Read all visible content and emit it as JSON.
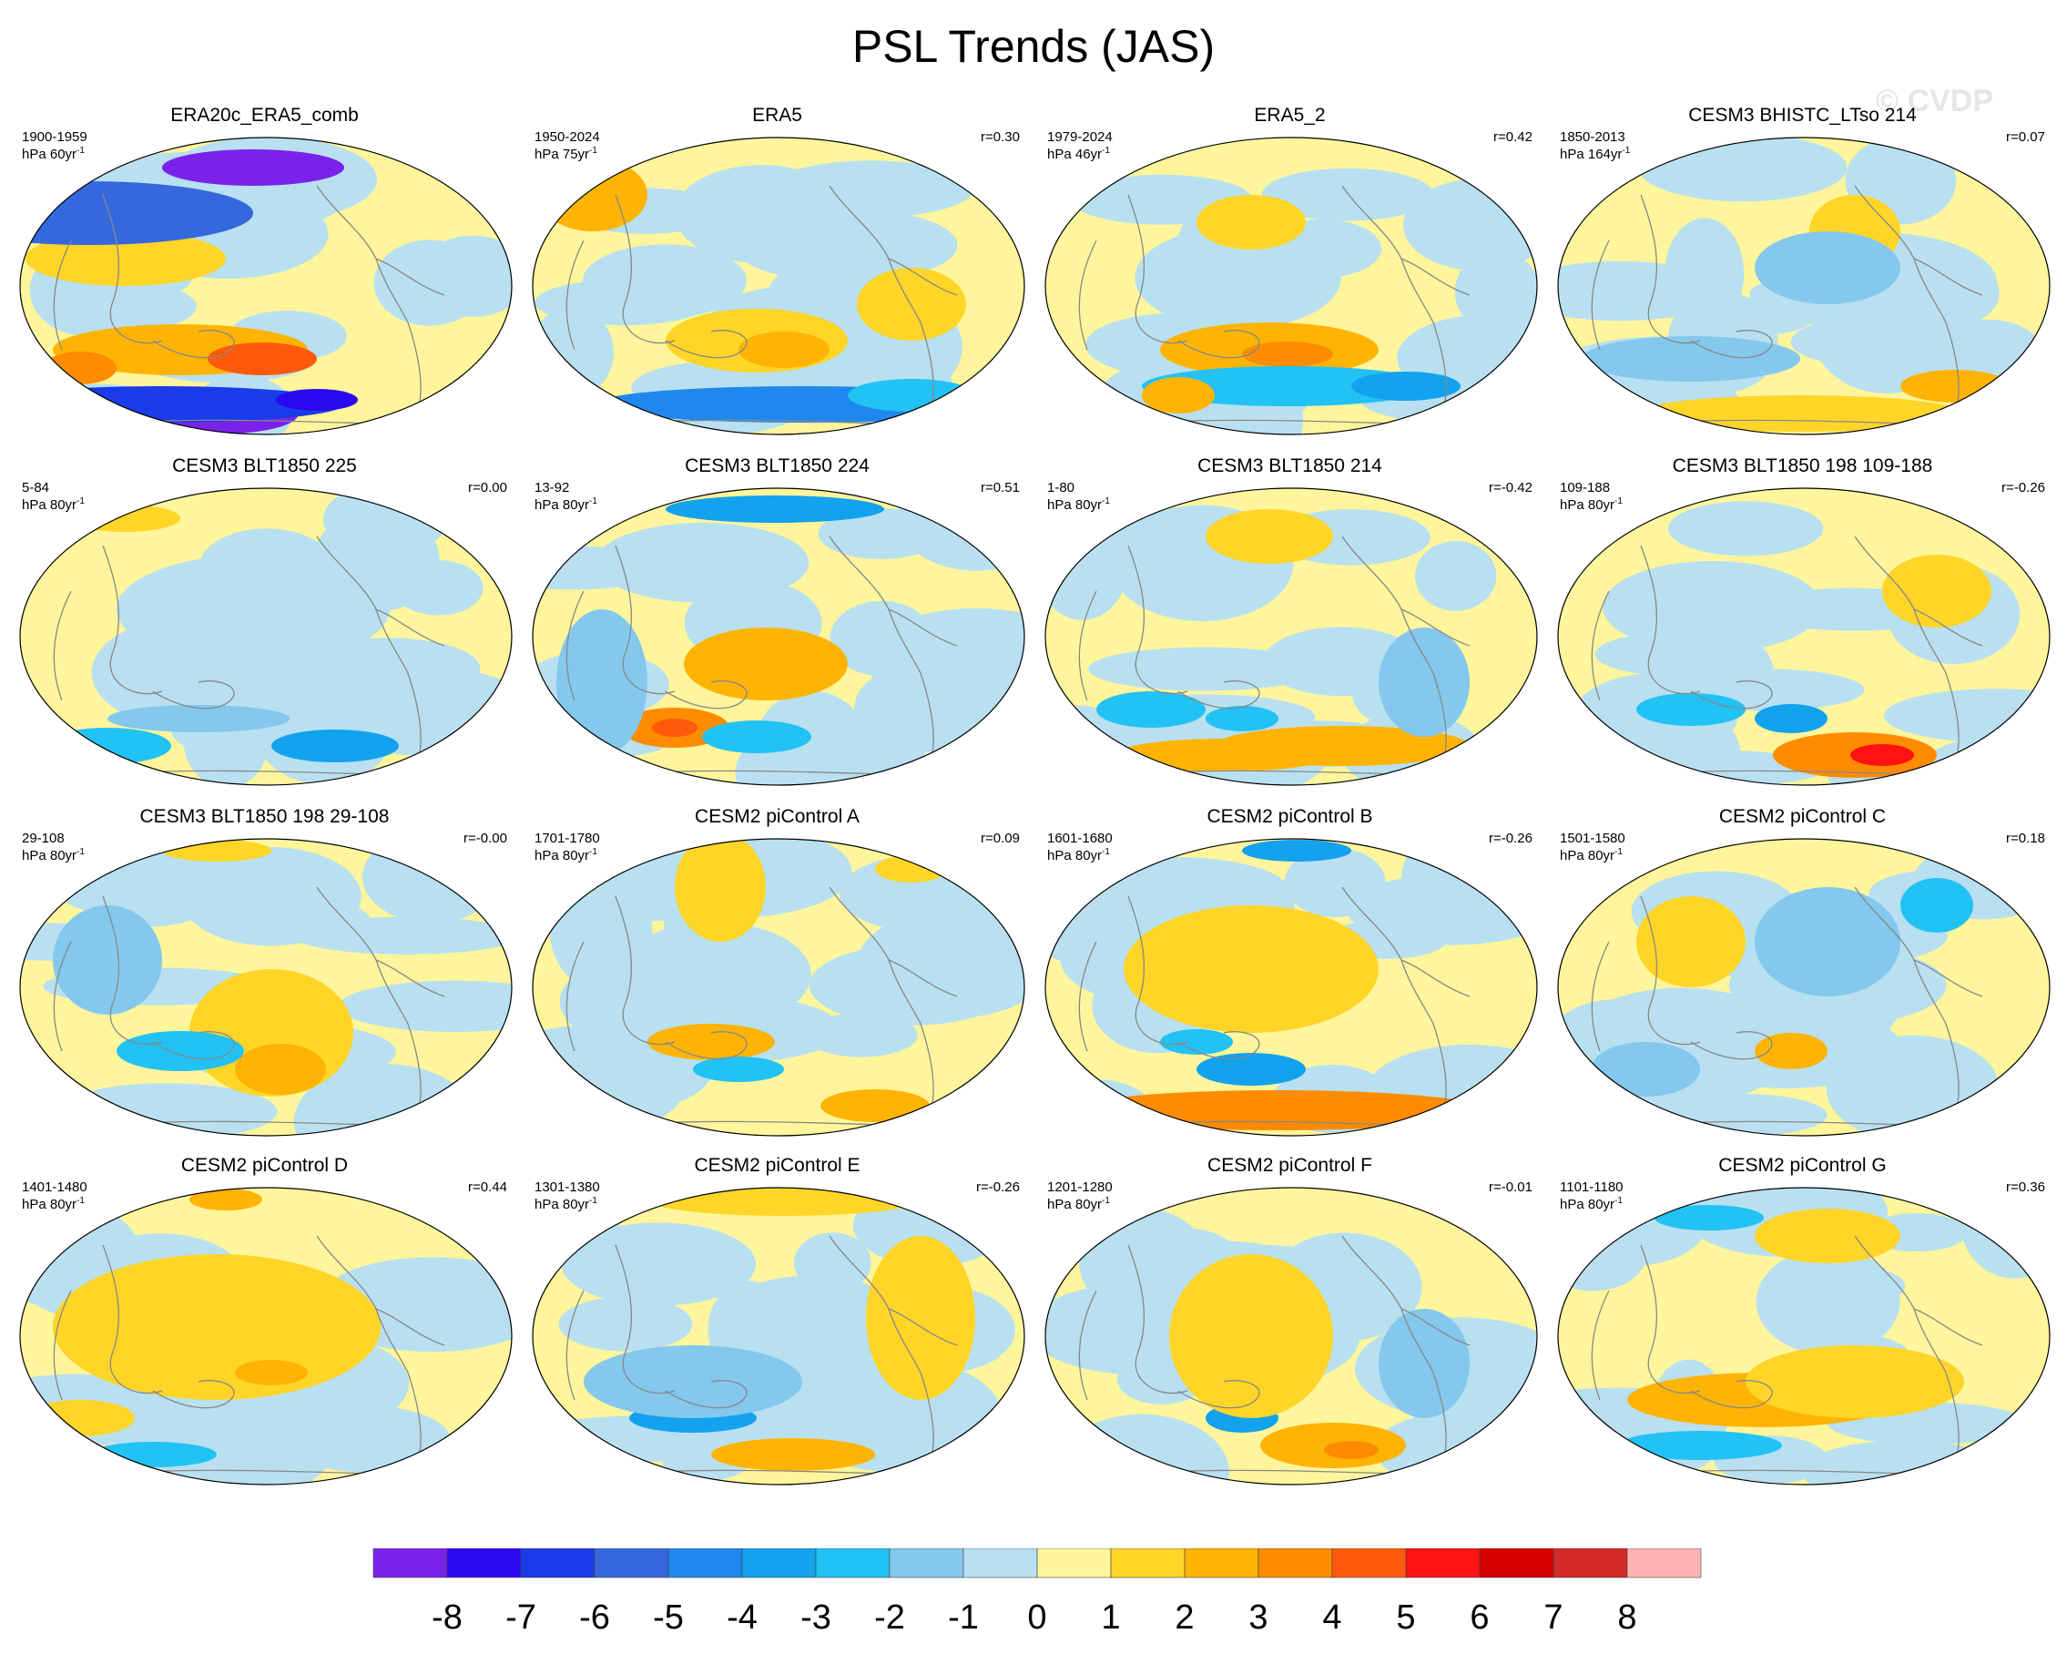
{
  "header": {
    "title": "PSL Trends (JAS)",
    "watermark": "© CVDP"
  },
  "chart_data": {
    "type": "heatmap",
    "title": "PSL Trends (JAS)",
    "projection": "Robinson, Pacific-centered",
    "panels": [
      {
        "name": "ERA20c_ERA5_comb",
        "period": "1900-1959",
        "units": "hPa 60yr",
        "units_exp": "-1",
        "r": ""
      },
      {
        "name": "ERA5",
        "period": "1950-2024",
        "units": "hPa 75yr",
        "units_exp": "-1",
        "r": "r=0.30"
      },
      {
        "name": "ERA5_2",
        "period": "1979-2024",
        "units": "hPa 46yr",
        "units_exp": "-1",
        "r": "r=0.42"
      },
      {
        "name": "CESM3 BHISTC_LTso 214",
        "period": "1850-2013",
        "units": "hPa 164yr",
        "units_exp": "-1",
        "r": "r=0.07"
      },
      {
        "name": "CESM3 BLT1850 225",
        "period": "5-84",
        "units": "hPa 80yr",
        "units_exp": "-1",
        "r": "r=0.00"
      },
      {
        "name": "CESM3 BLT1850 224",
        "period": "13-92",
        "units": "hPa 80yr",
        "units_exp": "-1",
        "r": "r=0.51"
      },
      {
        "name": "CESM3 BLT1850 214",
        "period": "1-80",
        "units": "hPa 80yr",
        "units_exp": "-1",
        "r": "r=-0.42"
      },
      {
        "name": "CESM3 BLT1850 198 109-188",
        "period": "109-188",
        "units": "hPa 80yr",
        "units_exp": "-1",
        "r": "r=-0.26"
      },
      {
        "name": "CESM3 BLT1850 198 29-108",
        "period": "29-108",
        "units": "hPa 80yr",
        "units_exp": "-1",
        "r": "r=-0.00"
      },
      {
        "name": "CESM2 piControl A",
        "period": "1701-1780",
        "units": "hPa 80yr",
        "units_exp": "-1",
        "r": "r=0.09"
      },
      {
        "name": "CESM2 piControl B",
        "period": "1601-1680",
        "units": "hPa 80yr",
        "units_exp": "-1",
        "r": "r=-0.26"
      },
      {
        "name": "CESM2 piControl C",
        "period": "1501-1580",
        "units": "hPa 80yr",
        "units_exp": "-1",
        "r": "r=0.18"
      },
      {
        "name": "CESM2 piControl D",
        "period": "1401-1480",
        "units": "hPa 80yr",
        "units_exp": "-1",
        "r": "r=0.44"
      },
      {
        "name": "CESM2 piControl E",
        "period": "1301-1380",
        "units": "hPa 80yr",
        "units_exp": "-1",
        "r": "r=-0.26"
      },
      {
        "name": "CESM2 piControl F",
        "period": "1201-1280",
        "units": "hPa 80yr",
        "units_exp": "-1",
        "r": "r=-0.01"
      },
      {
        "name": "CESM2 piControl G",
        "period": "1101-1180",
        "units": "hPa 80yr",
        "units_exp": "-1",
        "r": "r=0.36"
      }
    ],
    "colorbar": {
      "levels": [
        "-8",
        "-7",
        "-6",
        "-5",
        "-4",
        "-3",
        "-2",
        "-1",
        "0",
        "1",
        "2",
        "3",
        "4",
        "5",
        "6",
        "7",
        "8"
      ],
      "colors": [
        "#7b22ea",
        "#2a08f0",
        "#1a3be8",
        "#3468dc",
        "#1f88ee",
        "#13a2ee",
        "#22c2f4",
        "#84c8ee",
        "#b8e0f0",
        "#fff59c",
        "#ffd528",
        "#ffb404",
        "#ff8c00",
        "#ff5a0a",
        "#ff1212",
        "#d80000",
        "#d42a2a",
        "#ffb4b4"
      ]
    }
  },
  "palette": {
    "neg1": "#b8e0f0",
    "neg2": "#84c8ee",
    "neg3": "#22c2f4",
    "neg4": "#13a2ee",
    "neg5": "#1f88ee",
    "neg6": "#3468dc",
    "neg7": "#1a3be8",
    "neg8": "#2a08f0",
    "negmax": "#7b22ea",
    "pos1": "#fff59c",
    "pos2": "#ffd528",
    "pos3": "#ffb404",
    "pos4": "#ff8c00",
    "pos5": "#ff5a0a",
    "pos6": "#ff1212",
    "pos7": "#d80000",
    "coast": "#888888"
  }
}
